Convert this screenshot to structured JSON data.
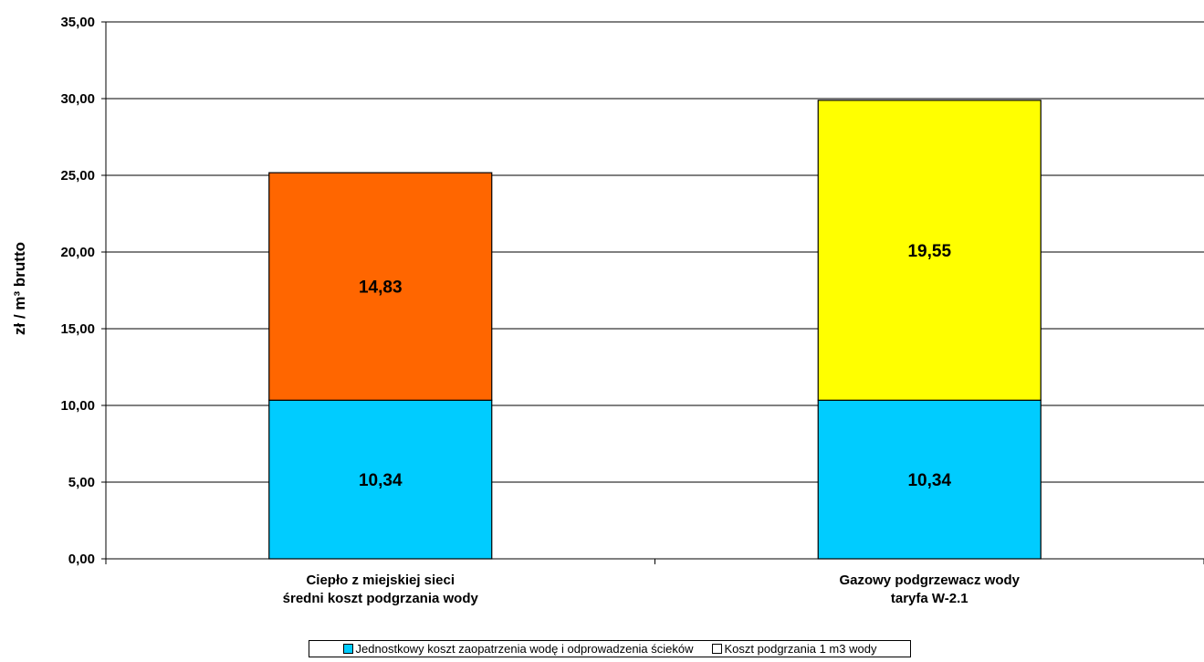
{
  "chart_data": {
    "type": "bar",
    "stacked": true,
    "categories": [
      [
        "Ciepło z miejskiej sieci",
        "średni koszt podgrzania wody"
      ],
      [
        "Gazowy podgrzewacz wody",
        "taryfa W-2.1"
      ]
    ],
    "ylabel": "zł / m³ brutto",
    "ylim": [
      0,
      35
    ],
    "ytick_labels": [
      "0,00",
      "5,00",
      "10,00",
      "15,00",
      "20,00",
      "25,00",
      "30,00",
      "35,00"
    ],
    "grid": true,
    "series": [
      {
        "name": "Jednostkowy koszt zaopatrzenia wodę i odprowadzenia ścieków",
        "values": [
          10.34,
          10.34
        ],
        "labels": [
          "10,34",
          "10,34"
        ],
        "colors": [
          "#00ccff",
          "#00ccff"
        ]
      },
      {
        "name": "Koszt podgrzania 1 m3 wody",
        "values": [
          14.83,
          19.55
        ],
        "labels": [
          "14,83",
          "19,55"
        ],
        "colors": [
          "#ff6600",
          "#ffff00"
        ]
      }
    ],
    "legend_position": "bottom"
  },
  "legend": {
    "items": [
      {
        "label": "Jednostkowy koszt zaopatrzenia wodę i odprowadzenia ścieków",
        "color": "#00ccff"
      },
      {
        "label": "Koszt podgrzania 1 m3 wody",
        "color": "#ffffff"
      }
    ]
  }
}
